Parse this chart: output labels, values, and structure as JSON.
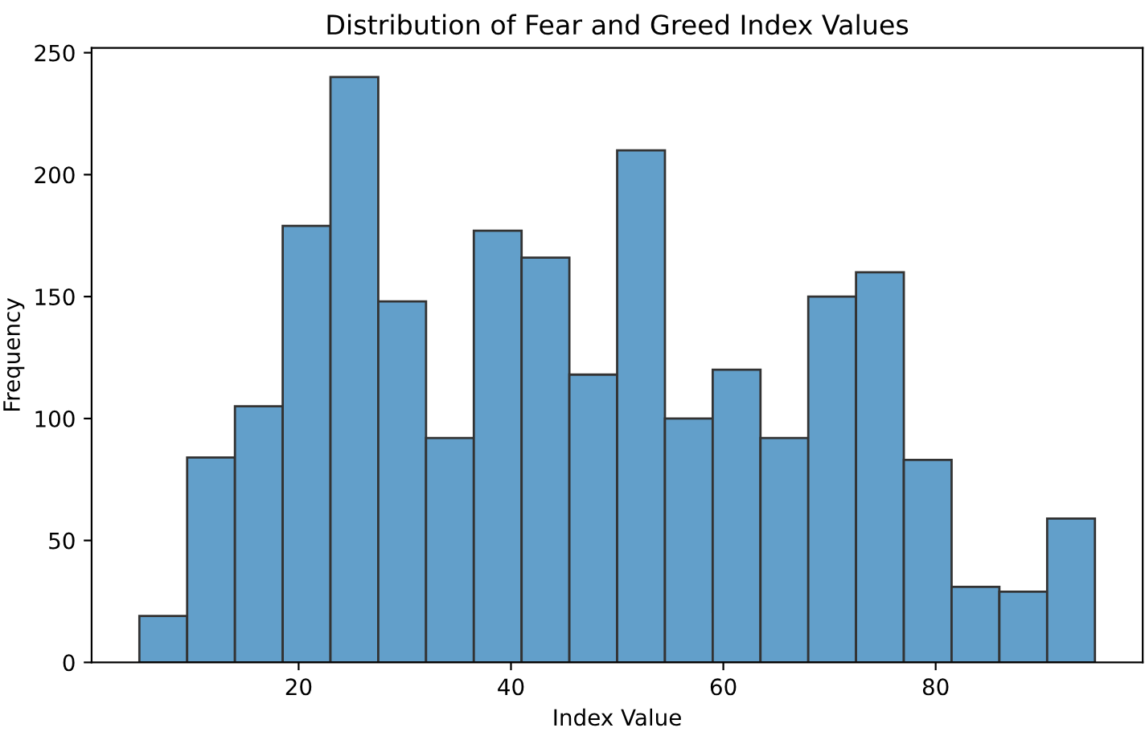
{
  "chart_data": {
    "type": "histogram",
    "title": "Distribution of Fear and Greed Index Values",
    "xlabel": "Index Value",
    "ylabel": "Frequency",
    "bins": [
      5,
      9.5,
      14,
      18.5,
      23,
      27.5,
      32,
      36.5,
      41,
      45.5,
      50,
      54.5,
      59,
      63.5,
      68,
      72.5,
      77,
      81.5,
      86,
      90.5,
      95
    ],
    "values": [
      19,
      84,
      105,
      179,
      240,
      148,
      92,
      177,
      166,
      118,
      210,
      100,
      120,
      92,
      150,
      160,
      83,
      31,
      29,
      59
    ],
    "color": "#629fca",
    "xlim": [
      0.5,
      99.5
    ],
    "ylim": [
      0,
      252
    ],
    "xticks": [
      20,
      40,
      60,
      80
    ],
    "yticks": [
      0,
      50,
      100,
      150,
      200,
      250
    ],
    "grid": false,
    "legend": false
  }
}
